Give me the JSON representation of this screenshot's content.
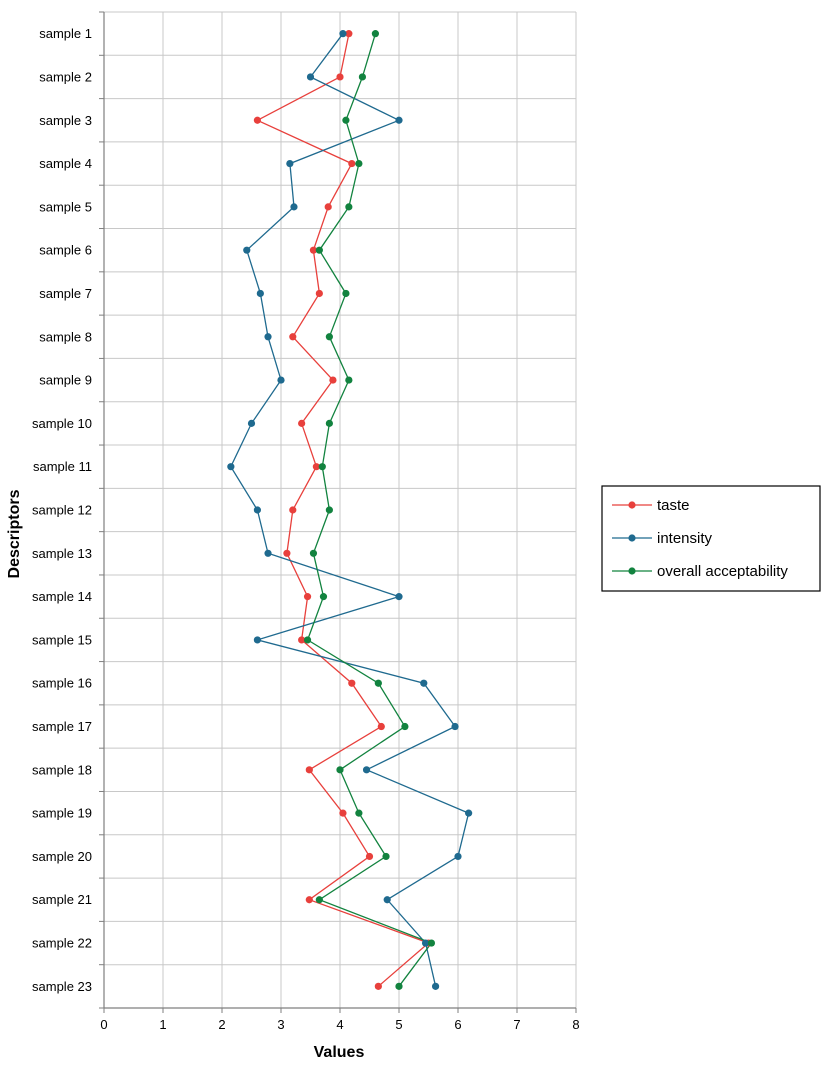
{
  "chart_data": {
    "type": "line",
    "orientation": "horizontal",
    "xlabel": "Values",
    "ylabel": "Descriptors",
    "xlim": [
      0,
      8
    ],
    "xticks": [
      0,
      1,
      2,
      3,
      4,
      5,
      6,
      7,
      8
    ],
    "grid": true,
    "legend_position": "right",
    "categories": [
      "sample 1",
      "sample 2",
      "sample 3",
      "sample 4",
      "sample 5",
      "sample 6",
      "sample 7",
      "sample 8",
      "sample 9",
      "sample 10",
      "sample 11",
      "sample 12",
      "sample 13",
      "sample 14",
      "sample 15",
      "sample 16",
      "sample 17",
      "sample 18",
      "sample 19",
      "sample 20",
      "sample 21",
      "sample 22",
      "sample 23"
    ],
    "series": [
      {
        "name": "taste",
        "color": "#e8403c",
        "values": [
          4.15,
          4.0,
          2.6,
          4.2,
          3.8,
          3.55,
          3.65,
          3.2,
          3.88,
          3.35,
          3.6,
          3.2,
          3.1,
          3.45,
          3.35,
          4.2,
          4.7,
          3.48,
          4.05,
          4.5,
          3.48,
          5.5,
          4.65
        ]
      },
      {
        "name": "intensity",
        "color": "#1f6a8f",
        "values": [
          4.05,
          3.5,
          5.0,
          3.15,
          3.22,
          2.42,
          2.65,
          2.78,
          3.0,
          2.5,
          2.15,
          2.6,
          2.78,
          5.0,
          2.6,
          5.42,
          5.95,
          4.45,
          6.18,
          6.0,
          4.8,
          5.45,
          5.62
        ]
      },
      {
        "name": "overall acceptability",
        "color": "#12833f",
        "values": [
          4.6,
          4.38,
          4.1,
          4.32,
          4.15,
          3.65,
          4.1,
          3.82,
          4.15,
          3.82,
          3.7,
          3.82,
          3.55,
          3.72,
          3.45,
          4.65,
          5.1,
          4.0,
          4.32,
          4.78,
          3.65,
          5.55,
          5.0
        ]
      }
    ]
  }
}
